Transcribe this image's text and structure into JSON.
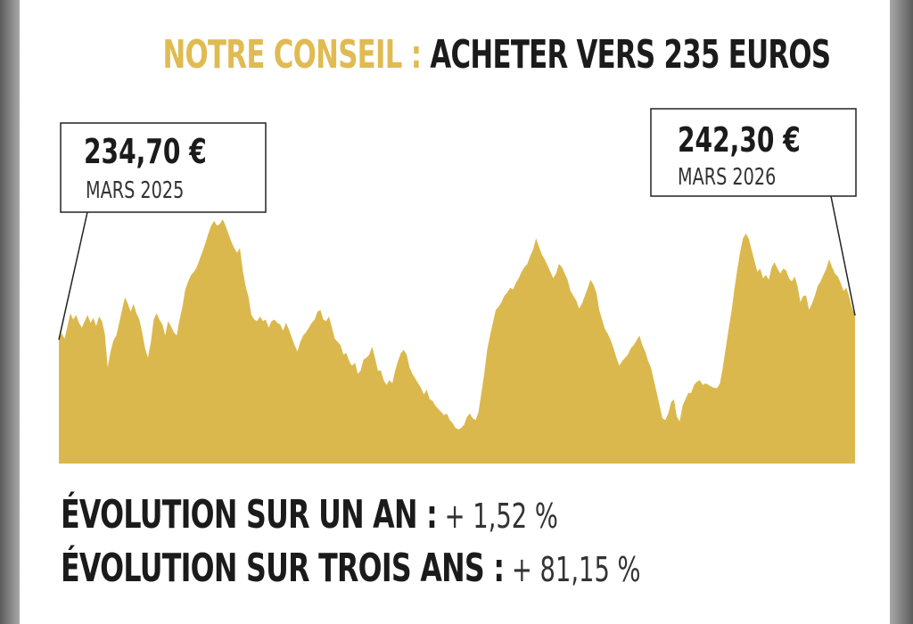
{
  "headline": {
    "prefix": "NOTRE CONSEIL :",
    "suffix": "ACHETER VERS 235 EUROS"
  },
  "colors": {
    "gold": "#e0bb52",
    "area": "#dbb84d",
    "text": "#1b1b1b"
  },
  "chart_data": {
    "type": "area",
    "title": "",
    "xlabel": "",
    "ylabel": "",
    "start_label": {
      "price": "234,70 €",
      "date": "MARS 2025"
    },
    "end_label": {
      "price": "242,30 €",
      "date": "MARS 2026"
    },
    "start_value": 234.7,
    "end_value": 242.3,
    "series": [
      {
        "values": [
          234.7,
          236.8,
          235.0,
          239.0,
          243.0,
          241.0,
          242.5,
          240.0,
          238.5,
          240.5,
          242.5,
          240.0,
          241.5,
          239.0,
          242.0,
          240.5,
          236.5,
          226.0,
          231.0,
          234.5,
          236.0,
          240.0,
          244.0,
          248.0,
          246.0,
          243.5,
          246.0,
          243.0,
          241.0,
          237.0,
          232.0,
          229.0,
          234.0,
          241.0,
          243.0,
          241.0,
          239.5,
          236.0,
          240.5,
          239.0,
          237.0,
          236.0,
          241.0,
          245.0,
          250.5,
          253.0,
          255.0,
          256.0,
          257.5,
          260.0,
          262.5,
          265.0,
          268.0,
          270.5,
          272.0,
          270.5,
          271.0,
          272.5,
          270.5,
          268.0,
          265.5,
          263.5,
          262.0,
          263.5,
          256.5,
          251.5,
          248.0,
          242.5,
          241.0,
          240.5,
          242.0,
          240.5,
          241.0,
          238.5,
          240.5,
          241.0,
          240.0,
          239.5,
          237.5,
          240.0,
          238.0,
          235.5,
          233.0,
          231.0,
          234.0,
          236.0,
          237.0,
          238.5,
          240.0,
          241.0,
          243.5,
          244.0,
          241.0,
          240.5,
          242.0,
          238.5,
          235.0,
          234.0,
          233.0,
          230.0,
          230.5,
          228.0,
          226.5,
          227.5,
          224.0,
          225.0,
          228.5,
          229.0,
          230.0,
          232.5,
          229.0,
          225.0,
          225.0,
          222.0,
          220.5,
          222.0,
          221.0,
          225.0,
          228.0,
          230.5,
          231.5,
          230.0,
          226.0,
          224.0,
          222.5,
          221.0,
          219.5,
          217.5,
          219.0,
          216.0,
          215.5,
          214.0,
          213.0,
          212.0,
          211.0,
          211.5,
          209.5,
          208.5,
          207.0,
          206.5,
          207.0,
          208.0,
          210.5,
          211.5,
          210.0,
          209.5,
          212.0,
          218.0,
          224.0,
          231.5,
          236.0,
          240.0,
          244.0,
          245.0,
          246.5,
          248.5,
          249.5,
          251.0,
          250.5,
          252.5,
          254.0,
          256.0,
          257.5,
          258.5,
          261.0,
          263.0,
          266.5,
          264.0,
          261.5,
          260.0,
          258.0,
          256.0,
          254.0,
          255.5,
          258.5,
          257.5,
          255.5,
          253.5,
          250.0,
          248.5,
          247.0,
          244.5,
          246.0,
          248.5,
          251.0,
          253.5,
          252.0,
          249.5,
          244.0,
          241.0,
          238.0,
          236.5,
          234.5,
          232.0,
          229.0,
          226.5,
          228.0,
          229.0,
          230.0,
          232.0,
          233.0,
          234.5,
          236.0,
          233.0,
          231.0,
          228.0,
          226.0,
          222.0,
          218.0,
          214.0,
          210.0,
          209.5,
          211.5,
          215.0,
          216.0,
          210.5,
          209.0,
          214.0,
          216.0,
          218.0,
          218.0,
          220.5,
          221.5,
          222.0,
          220.5,
          221.0,
          220.5,
          220.0,
          219.5,
          219.5,
          221.0,
          226.0,
          232.0,
          238.0,
          243.5,
          250.5,
          256.5,
          262.0,
          266.5,
          268.0,
          266.5,
          263.0,
          259.5,
          256.0,
          257.0,
          254.0,
          255.0,
          253.5,
          257.5,
          259.0,
          257.0,
          255.5,
          257.0,
          256.5,
          254.0,
          253.0,
          254.5,
          251.5,
          246.5,
          248.5,
          248.5,
          244.0,
          246.0,
          248.5,
          251.5,
          253.0,
          255.0,
          257.0,
          260.0,
          257.5,
          255.5,
          254.5,
          252.5,
          250.0,
          251.0,
          248.0,
          244.5,
          242.3
        ]
      }
    ]
  }
}
